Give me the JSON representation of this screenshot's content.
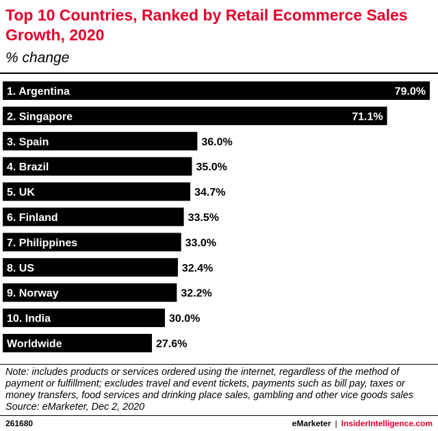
{
  "chart_data": {
    "type": "bar",
    "orientation": "horizontal",
    "title": "Top 10 Countries, Ranked by Retail Ecommerce Sales Growth, 2020",
    "subtitle": "% change",
    "categories": [
      "1. Argentina",
      "2. Singapore",
      "3. Spain",
      "4. Brazil",
      "5. UK",
      "6. Finland",
      "7. Philippines",
      "8. US",
      "9. Norway",
      "10. India",
      "Worldwide"
    ],
    "values": [
      79.0,
      71.1,
      36.0,
      35.0,
      34.7,
      33.5,
      33.0,
      32.4,
      32.2,
      30.0,
      27.6
    ],
    "value_labels": [
      "79.0%",
      "71.1%",
      "36.0%",
      "35.0%",
      "34.7%",
      "33.5%",
      "33.0%",
      "32.4%",
      "32.2%",
      "30.0%",
      "27.6%"
    ],
    "xlim": [
      0,
      79.0
    ],
    "bar_color": "#000000",
    "grid": false,
    "legend": "none"
  },
  "note": {
    "lines": [
      "Note: includes products or services ordered using the internet, regardless of the method of",
      "payment or fulfillment; excludes travel and event tickets, payments such as bill pay, taxes or",
      "money transfers, food services and drinking place sales, gambling and other vice goods sales",
      "Source: eMarketer, Dec 2, 2020"
    ]
  },
  "footer": {
    "id": "261680",
    "brand": "eMarketer",
    "separator": "|",
    "brand2": "InsiderIntelligence.com"
  },
  "colors": {
    "title": "#e4002b",
    "bar": "#000000"
  }
}
